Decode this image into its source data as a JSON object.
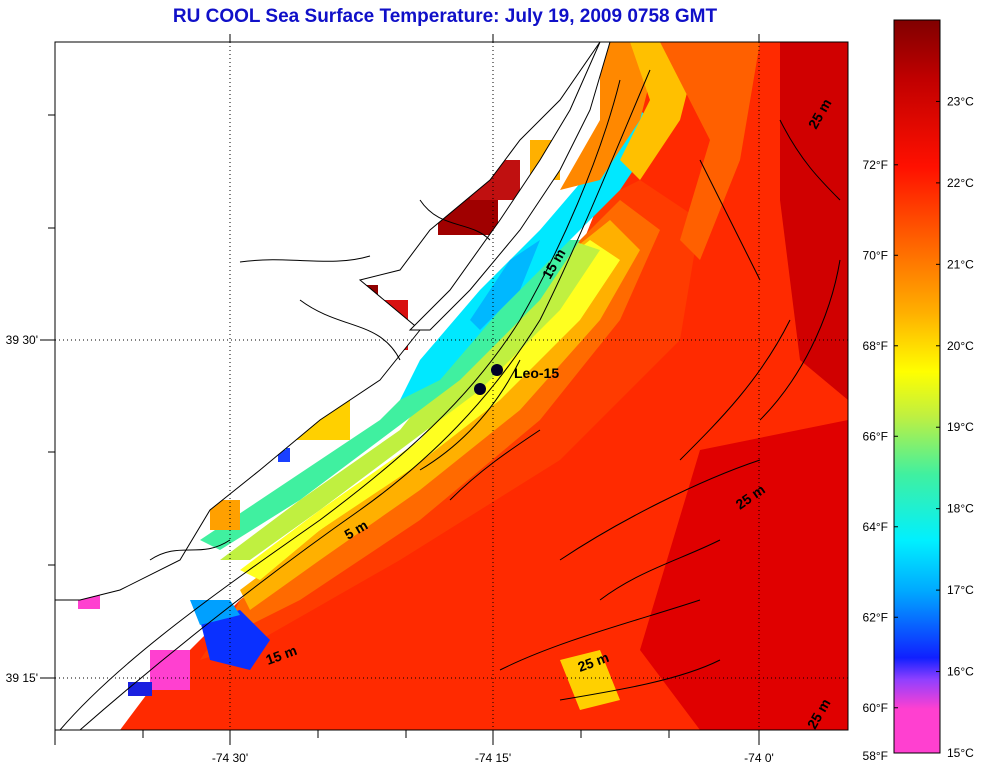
{
  "title": {
    "text": "RU COOL  Sea Surface Temperature:  July 19, 2009 0758 GMT",
    "color": "#1010c8"
  },
  "map": {
    "lat_labels": [
      "39 30'",
      "39 15'"
    ],
    "lon_labels": [
      "-74 30'",
      "-74 15'",
      "-74 0'"
    ],
    "depth_labels": [
      "5 m",
      "15 m",
      "15 m",
      "25 m",
      "25 m",
      "25 m",
      "25 m"
    ],
    "stations": {
      "label": "Leo-15",
      "count": 2
    }
  },
  "colorbar": {
    "celsius_labels": [
      "23°C",
      "22°C",
      "21°C",
      "20°C",
      "19°C",
      "18°C",
      "17°C",
      "16°C",
      "15°C"
    ],
    "fahrenheit_labels": [
      "72°F",
      "70°F",
      "68°F",
      "66°F",
      "64°F",
      "62°F",
      "60°F",
      "58°F"
    ],
    "celsius_range": [
      15,
      24
    ],
    "stops": [
      "#ff40d0",
      "#9040ff",
      "#1020ff",
      "#00a8ff",
      "#00f0ff",
      "#40f0a0",
      "#c0f040",
      "#ffff00",
      "#ffb000",
      "#ff6000",
      "#ff1000",
      "#c00000",
      "#800000"
    ]
  }
}
